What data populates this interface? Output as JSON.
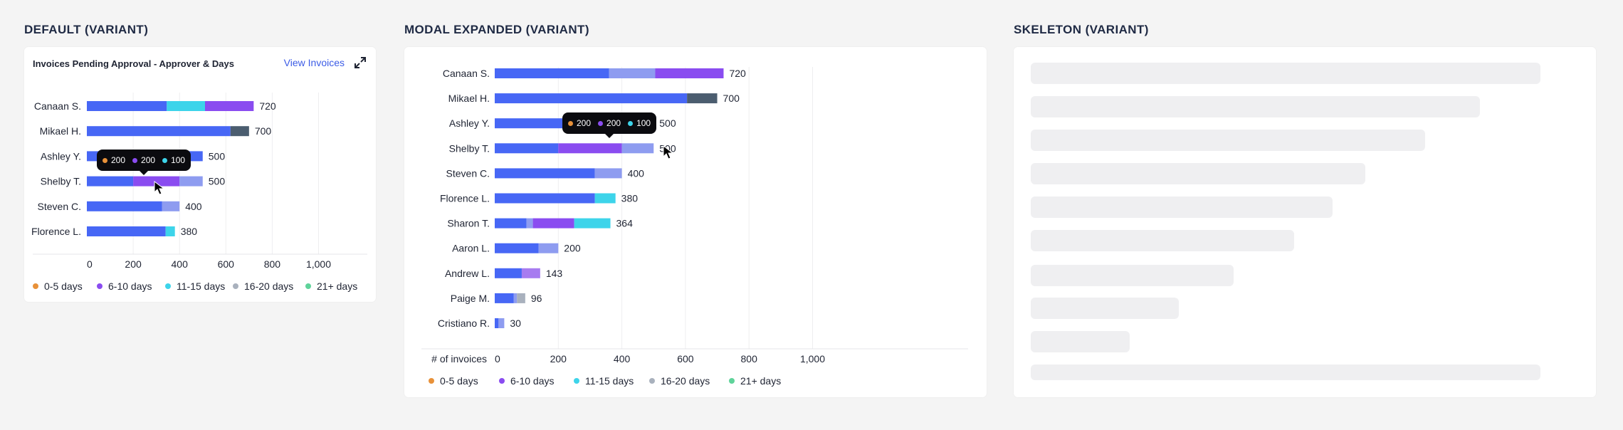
{
  "variants": {
    "default_title": "DEFAULT (VARIANT)",
    "modal_title": "MODAL EXPANDED (VARIANT)",
    "skeleton_title": "SKELETON (VARIANT)"
  },
  "default_card": {
    "title": "Invoices Pending Approval - Approver & Days",
    "view_link": "View Invoices",
    "expand_icon": "expand-icon"
  },
  "colors": {
    "blue": "#4767f5",
    "light_blue": "#8e9cf0",
    "purple": "#8a4cf0",
    "cyan": "#3dd4ea",
    "slate": "#4b5d6f",
    "light_purple": "#a77cf0",
    "legend_orange": "#e89139",
    "legend_purple": "#8a4cf0",
    "legend_cyan": "#3dd4ea",
    "legend_gray": "#a9b1bd",
    "legend_green": "#5fd39a"
  },
  "legend": [
    {
      "label": "0-5 days",
      "color": "#e89139"
    },
    {
      "label": "6-10 days",
      "color": "#8a4cf0"
    },
    {
      "label": "11-15 days",
      "color": "#3dd4ea"
    },
    {
      "label": "16-20 days",
      "color": "#a9b1bd"
    },
    {
      "label": "21+ days",
      "color": "#5fd39a"
    }
  ],
  "tooltip": [
    {
      "value": "200",
      "color": "#e89139"
    },
    {
      "value": "200",
      "color": "#8a4cf0"
    },
    {
      "value": "100",
      "color": "#3dd4ea"
    }
  ],
  "chart_data": [
    {
      "type": "bar",
      "orientation": "horizontal",
      "stacked": true,
      "xlim": [
        0,
        1000
      ],
      "x_ticks": [
        "0",
        "200",
        "400",
        "600",
        "800",
        "1,000"
      ],
      "xlabel": "",
      "rows": [
        {
          "name": "Canaan S.",
          "total": "720",
          "segments": [
            {
              "v": 345,
              "c": "#4767f5"
            },
            {
              "v": 165,
              "c": "#3dd4ea"
            },
            {
              "v": 210,
              "c": "#8a4cf0"
            }
          ]
        },
        {
          "name": "Mikael H.",
          "total": "700",
          "segments": [
            {
              "v": 620,
              "c": "#4767f5"
            },
            {
              "v": 80,
              "c": "#4b5d6f"
            }
          ]
        },
        {
          "name": "Ashley Y.",
          "total": "500",
          "segments": [
            {
              "v": 500,
              "c": "#4767f5"
            }
          ]
        },
        {
          "name": "Shelby T.",
          "total": "500",
          "segments": [
            {
              "v": 200,
              "c": "#4767f5"
            },
            {
              "v": 200,
              "c": "#8a4cf0"
            },
            {
              "v": 100,
              "c": "#8e9cf0"
            }
          ]
        },
        {
          "name": "Steven C.",
          "total": "400",
          "segments": [
            {
              "v": 325,
              "c": "#4767f5"
            },
            {
              "v": 75,
              "c": "#8e9cf0"
            }
          ]
        },
        {
          "name": "Florence L.",
          "total": "380",
          "segments": [
            {
              "v": 340,
              "c": "#4767f5"
            },
            {
              "v": 40,
              "c": "#3dd4ea"
            }
          ]
        }
      ]
    },
    {
      "type": "bar",
      "orientation": "horizontal",
      "stacked": true,
      "xlim": [
        0,
        1000
      ],
      "x_ticks": [
        "0",
        "200",
        "400",
        "600",
        "800",
        "1,000"
      ],
      "xlabel": "# of invoices",
      "rows": [
        {
          "name": "Canaan S.",
          "total": "720",
          "segments": [
            {
              "v": 360,
              "c": "#4767f5"
            },
            {
              "v": 145,
              "c": "#8e9cf0"
            },
            {
              "v": 215,
              "c": "#8a4cf0"
            }
          ]
        },
        {
          "name": "Mikael H.",
          "total": "700",
          "segments": [
            {
              "v": 605,
              "c": "#4767f5"
            },
            {
              "v": 95,
              "c": "#4b5d6f"
            }
          ]
        },
        {
          "name": "Ashley Y.",
          "total": "500",
          "segments": [
            {
              "v": 500,
              "c": "#4767f5"
            }
          ]
        },
        {
          "name": "Shelby T.",
          "total": "500",
          "segments": [
            {
              "v": 200,
              "c": "#4767f5"
            },
            {
              "v": 200,
              "c": "#8a4cf0"
            },
            {
              "v": 100,
              "c": "#8e9cf0"
            }
          ]
        },
        {
          "name": "Steven C.",
          "total": "400",
          "segments": [
            {
              "v": 315,
              "c": "#4767f5"
            },
            {
              "v": 85,
              "c": "#8e9cf0"
            }
          ]
        },
        {
          "name": "Florence L.",
          "total": "380",
          "segments": [
            {
              "v": 315,
              "c": "#4767f5"
            },
            {
              "v": 65,
              "c": "#3dd4ea"
            }
          ]
        },
        {
          "name": "Sharon T.",
          "total": "364",
          "segments": [
            {
              "v": 100,
              "c": "#4767f5"
            },
            {
              "v": 20,
              "c": "#8e9cf0"
            },
            {
              "v": 130,
              "c": "#8a4cf0"
            },
            {
              "v": 114,
              "c": "#3dd4ea"
            }
          ]
        },
        {
          "name": "Aaron L.",
          "total": "200",
          "segments": [
            {
              "v": 138,
              "c": "#4767f5"
            },
            {
              "v": 62,
              "c": "#8e9cf0"
            }
          ]
        },
        {
          "name": "Andrew L.",
          "total": "143",
          "segments": [
            {
              "v": 85,
              "c": "#4767f5"
            },
            {
              "v": 58,
              "c": "#a77cf0"
            }
          ]
        },
        {
          "name": "Paige M.",
          "total": "96",
          "segments": [
            {
              "v": 60,
              "c": "#4767f5"
            },
            {
              "v": 10,
              "c": "#8e9cf0"
            },
            {
              "v": 26,
              "c": "#a9b1bd"
            }
          ]
        },
        {
          "name": "Cristiano R.",
          "total": "30",
          "segments": [
            {
              "v": 12,
              "c": "#4767f5"
            },
            {
              "v": 18,
              "c": "#8e9cf0"
            }
          ]
        }
      ]
    }
  ],
  "skeleton_rows": [
    0.93,
    0.82,
    0.72,
    0.61,
    0.55,
    0.48,
    0.37,
    0.27,
    0.18,
    0.93
  ]
}
